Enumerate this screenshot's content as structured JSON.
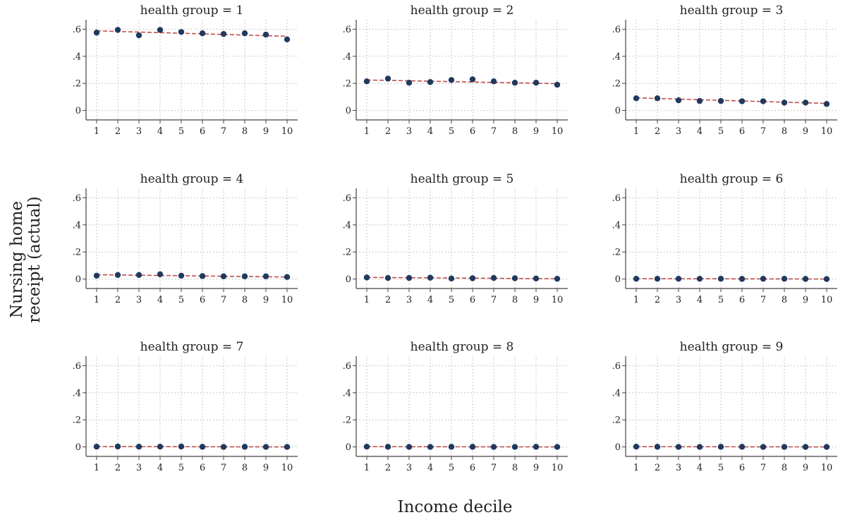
{
  "chart_data": {
    "type": "scatter",
    "ylabel": [
      "Nursing home",
      "receipt (actual)"
    ],
    "xlabel": "Income decile",
    "x_ticks": [
      "1",
      "2",
      "3",
      "4",
      "5",
      "6",
      "7",
      "8",
      "9",
      "10"
    ],
    "y_ticks": [
      {
        "value": 0,
        "label": "0"
      },
      {
        "value": 0.2,
        "label": ".2"
      },
      {
        "value": 0.4,
        "label": ".4"
      },
      {
        "value": 0.6,
        "label": ".6"
      }
    ],
    "xlim": [
      0.5,
      10.5
    ],
    "ylim": [
      -0.07,
      0.67
    ],
    "grid": true,
    "colors": {
      "point": "#1f3a5f",
      "fit_line": "#c0504d",
      "grid": "#b8b8b8",
      "axis": "#444444"
    },
    "panels": [
      {
        "title": "health group = 1",
        "values": [
          0.575,
          0.595,
          0.555,
          0.595,
          0.58,
          0.57,
          0.565,
          0.57,
          0.56,
          0.525
        ],
        "fit": [
          0.588,
          0.548
        ]
      },
      {
        "title": "health group = 2",
        "values": [
          0.215,
          0.235,
          0.205,
          0.21,
          0.225,
          0.23,
          0.215,
          0.205,
          0.205,
          0.19
        ],
        "fit": [
          0.225,
          0.198
        ]
      },
      {
        "title": "health group = 3",
        "values": [
          0.09,
          0.09,
          0.075,
          0.07,
          0.07,
          0.068,
          0.068,
          0.058,
          0.058,
          0.048
        ],
        "fit": [
          0.093,
          0.052
        ]
      },
      {
        "title": "health group = 4",
        "values": [
          0.025,
          0.03,
          0.03,
          0.035,
          0.025,
          0.022,
          0.02,
          0.02,
          0.02,
          0.015
        ],
        "fit": [
          0.032,
          0.015
        ]
      },
      {
        "title": "health group = 5",
        "values": [
          0.012,
          0.008,
          0.008,
          0.01,
          0.004,
          0.006,
          0.008,
          0.006,
          0.004,
          0.002
        ],
        "fit": [
          0.012,
          0.002
        ]
      },
      {
        "title": "health group = 6",
        "values": [
          0.002,
          0.002,
          0.002,
          0.002,
          0.002,
          0.001,
          0.002,
          0.002,
          0.001,
          0.0
        ],
        "fit": [
          0.003,
          0.0
        ]
      },
      {
        "title": "health group = 7",
        "values": [
          0.002,
          0.003,
          0.002,
          0.002,
          0.003,
          0.001,
          0.0,
          0.001,
          0.0,
          0.0
        ],
        "fit": [
          0.003,
          0.0
        ]
      },
      {
        "title": "health group = 8",
        "values": [
          0.002,
          0.001,
          0.0,
          0.0,
          0.001,
          0.001,
          0.0,
          0.0,
          0.001,
          0.0
        ],
        "fit": [
          0.002,
          0.0
        ]
      },
      {
        "title": "health group = 9",
        "values": [
          0.002,
          0.001,
          0.0,
          0.0,
          0.001,
          0.001,
          0.0,
          0.0,
          0.0,
          0.0
        ],
        "fit": [
          0.002,
          0.0
        ]
      }
    ]
  }
}
